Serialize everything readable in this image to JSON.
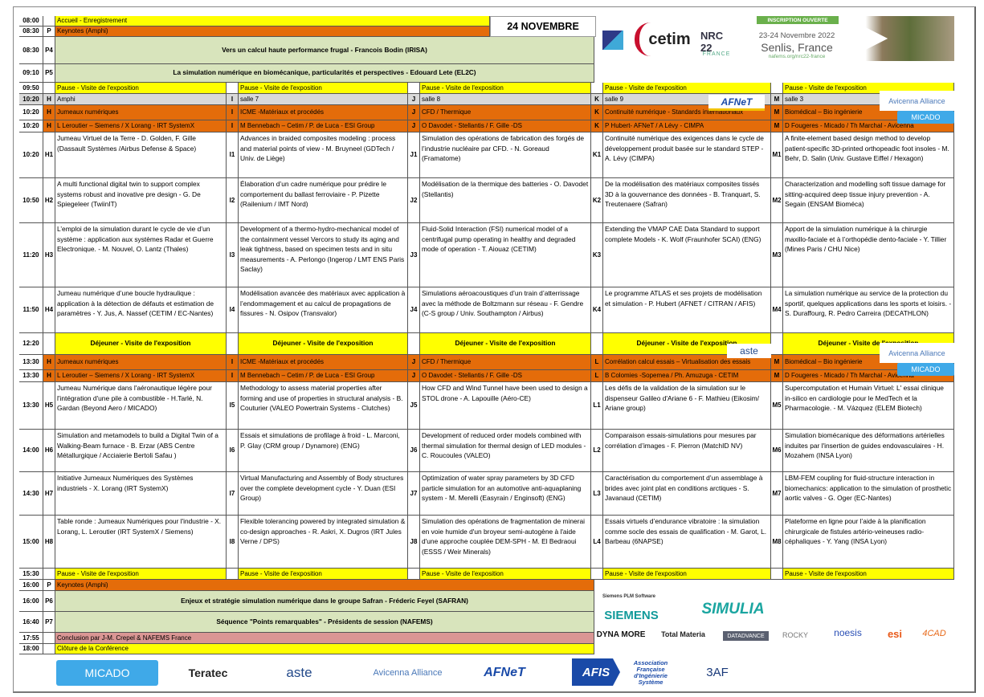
{
  "header": {
    "date": "24 NOVEMBRE",
    "event": {
      "badge": "INSCRIPTION OUVERTE",
      "dates": "23-24 Novembre 2022",
      "place": "Senlis, France",
      "url": "nafems.org/nrc22-france",
      "logo": "NRC 22",
      "logo_sub": "FRANCE"
    },
    "cetim": "cetim"
  },
  "colors": {
    "break": "#ffff00",
    "session": "#e46c0a",
    "keynote": "#d8e4bc",
    "room": "#d9d9d9",
    "conclusion": "#da9694"
  },
  "plenary_morning": [
    {
      "time": "08:00",
      "code": "",
      "text": "Accueil - Enregistrement",
      "kind": "y"
    },
    {
      "time": "08:30",
      "code": "P",
      "text": "Keynotes (Amphi)",
      "kind": "o"
    },
    {
      "time": "08:30",
      "code": "P4",
      "text": "Vers un calcul haute performance frugal - Francois Bodin (IRISA)",
      "kind": "g"
    },
    {
      "time": "09:10",
      "code": "P5",
      "text": "La simulation numérique en biomécanique, particularités et perspectives - Edouard Lete (EL2C)",
      "kind": "g"
    }
  ],
  "morning_break": {
    "time": "09:50",
    "text": "Pause - Visite de l'exposition"
  },
  "rooms": {
    "time": "10:20",
    "items": [
      {
        "code": "H",
        "name": "Amphi"
      },
      {
        "code": "I",
        "name": "salle 7"
      },
      {
        "code": "J",
        "name": "salle 8"
      },
      {
        "code": "K",
        "name": "salle 9"
      },
      {
        "code": "M",
        "name": "salle 3"
      }
    ]
  },
  "morning_sessions": {
    "time": "10:20",
    "tracks": [
      {
        "code": "H",
        "title": "Jumeaux numériques",
        "chairs": "L Leroutier – Siemens / X Lorang - IRT SystemX"
      },
      {
        "code": "I",
        "title": "ICME -Matériaux et procédés",
        "chairs": "M Bennebach – Cetim / P. de Luca - ESI Group"
      },
      {
        "code": "J",
        "title": "CFD / Thermique",
        "chairs": "O Davodet - Stellantis / F. Gille -DS"
      },
      {
        "code": "K",
        "title": "Continuité numérique - Standards internationaux",
        "chairs": "P Hubert- AFNeT / A Lévy - CIMPA"
      },
      {
        "code": "M",
        "title": "Biomédical – Bio ingénierie",
        "chairs": "D Fougeres - Micado / Th Marchal - Avicenna"
      }
    ]
  },
  "morning_talks": [
    {
      "time": "10:20",
      "cells": [
        {
          "code": "H1",
          "text": "Jumeau Virtuel de la Terre - D. Golden, F. Gille (Dassault Systèmes /Airbus Defense & Space)"
        },
        {
          "code": "I1",
          "text": "Advances in braided composites modeling : process and material points of view - M. Bruyneel (GDTech / Univ. de Liège)"
        },
        {
          "code": "J1",
          "text": "Simulation des opérations de fabrication des forgés de l’industrie nucléaire par CFD. - N. Goreaud (Framatome)"
        },
        {
          "code": "K1",
          "text": "Continuité numérique des exigences dans le cycle de développement produit basée sur le standard STEP - A. Lévy (CIMPA)"
        },
        {
          "code": "M1",
          "text": "A finite-element based design method to develop patient-specific 3D-printed orthopeadic foot insoles - M. Behr, D. Salin (Univ. Gustave Eiffel / Hexagon)"
        }
      ]
    },
    {
      "time": "10:50",
      "cells": [
        {
          "code": "H2",
          "text": "A multi functional digital twin to support complex systems robust and inovative pre design - G. De Spiegeleer (TwiinIT)"
        },
        {
          "code": "I2",
          "text": "Élaboration d’un cadre numérique pour prédire le comportement du ballast ferroviaire - P. Pizette (Railenium / IMT Nord)"
        },
        {
          "code": "J2",
          "text": "Modélisation de la thermique des batteries - O. Davodet (Stellantis)"
        },
        {
          "code": "K2",
          "text": " De la modélisation des matériaux composites tissés 3D à la gouvernance des données  - B. Tranquart, S. Treutenaere  (Safran)"
        },
        {
          "code": "M2",
          "text": "Characterization and modelling soft tissue damage for sitting-acquired deep tissue injury prevention - A. Segain (ENSAM Bioméca)"
        }
      ]
    },
    {
      "time": "11:20",
      "cells": [
        {
          "code": "H3",
          "text": "L’emploi de la simulation durant le cycle de vie d’un système : application aux systèmes Radar et Guerre Electronique. - M. Nouvel, O. Lantz (Thales)"
        },
        {
          "code": "I3",
          "text": "Development of a thermo-hydro-mechanical model of the containment vessel Vercors to study its aging and leak tightness, based on specimen tests and in situ measurements  - A. Perlongo (Ingerop / LMT ENS Paris Saclay)"
        },
        {
          "code": "J3",
          "text": "Fluid-Solid Interaction (FSI) numerical model of a centrifugal pump operating in healthy and degraded mode of operation - T. Aiouaz (CETIM)"
        },
        {
          "code": "K3",
          "text": "Extending the VMAP CAE Data Standard to support complete Models - K. Wolf (Fraunhofer SCAI) (ENG)"
        },
        {
          "code": "M3",
          "text": "Apport de la simulation numérique à la chirurgie maxillo-faciale et à l’orthopédie dento-faciale - Y. Tillier (Mines Paris / CHU Nice)"
        }
      ]
    },
    {
      "time": "11:50",
      "cells": [
        {
          "code": "H4",
          "text": "Jumeau numérique d’une boucle hydraulique : application à la détection de défauts et estimation de paramètres - Y. Jus, A. Nassef (CETIM / EC-Nantes)"
        },
        {
          "code": "I4",
          "text": "Modélisation avancée des matériaux avec application à l’endommagement et au calcul de propagations de fissures  - N. Osipov (Transvalor)"
        },
        {
          "code": "J4",
          "text": "Simulations aéroacoustiques d’un train d’atterrissage avec la méthode de Boltzmann sur réseau - F. Gendre (C-S group / Univ. Southampton / Airbus)"
        },
        {
          "code": "K4",
          "text": "Le programme ATLAS et ses projets de modélisation et simulation - P. Hubert (AFNET / CITRAN / AFIS)"
        },
        {
          "code": "M4",
          "text": "La simulation numérique au service de la protection du sportif, quelques applications dans les sports et loisirs. - S. Duraffourg, R. Pedro Carreira (DECATHLON)"
        }
      ]
    }
  ],
  "lunch": {
    "time": "12:20",
    "text": "Déjeuner - Visite de l'exposition"
  },
  "afternoon_sessions": {
    "time": "13:30",
    "tracks": [
      {
        "code": "H",
        "title": "Jumeaux numériques",
        "chairs": "L Leroutier – Siemens / X Lorang - IRT SystemX"
      },
      {
        "code": "I",
        "title": "ICME -Matériaux et procédés",
        "chairs": "M Bennebach – Cetim / P. de Luca - ESI Group"
      },
      {
        "code": "J",
        "title": "CFD / Thermique",
        "chairs": "O Davodet - Stellantis / F. Gille -DS"
      },
      {
        "code": "L",
        "title": "Corrélation calcul essais – Virtualisation des essais",
        "chairs": "B Colomies -Sopemea / Ph. Amuzuga - CETIM"
      },
      {
        "code": "M",
        "title": "Biomédical – Bio ingénierie",
        "chairs": "D Fougeres - Micado / Th Marchal - Avicenna"
      }
    ]
  },
  "afternoon_talks": [
    {
      "time": "13:30",
      "cells": [
        {
          "code": "H5",
          "text": "Jumeau Numérique dans l'aéronautique légère pour l'intégration d'une pile à combustible - H.Tarlé, N. Gardan  (Beyond Aero / MICADO)"
        },
        {
          "code": "I5",
          "text": "Methodology to assess material properties after forming and use of properties in structural analysis - B. Couturier (VALEO Powertrain Systems - Clutches)"
        },
        {
          "code": "J5",
          "text": "How CFD and Wind Tunnel have been used to design a STOL drone - A. Lapouille (Aéro-CE)"
        },
        {
          "code": "L1",
          "text": "Les défis de la validation de la simulation sur le dispenseur Galileo d'Ariane 6 - F. Mathieu (Eikosim/ Ariane group)"
        },
        {
          "code": "M5",
          "text": "Supercomputation et Humain Virtuel: L' essai clinique in-silico en cardiologie pour le MedTech et la Pharmacologie.  - M. Vázquez  (ELEM Biotech)"
        }
      ]
    },
    {
      "time": "14:00",
      "cells": [
        {
          "code": "H6",
          "text": "Simulation and metamodels to build a Digital Twin of a Walking-Beam furnace  - B. Erzar (ABS Centre Métallurgique / Acciaierie Bertoli Safau )"
        },
        {
          "code": "I6",
          "text": "Essais et simulations de profilage à froid - L. Marconi, P. Glay (CRM group / Dynamore) (ENG)"
        },
        {
          "code": "J6",
          "text": "Development of reduced order models combined with thermal simulation for thermal design of LED modules - C. Roucoules (VALEO)"
        },
        {
          "code": "L2",
          "text": "Comparaison essais-simulations pour mesures par corrélation d’images - F. Pierron  (MatchID NV)"
        },
        {
          "code": "M6",
          "text": "Simulation biomécanique des déformations artérielles induites par l'insertion de guides endovasculaires - H. Mozahem (INSA Lyon)"
        }
      ]
    },
    {
      "time": "14:30",
      "cells": [
        {
          "code": "H7",
          "text": "Initiative Jumeaux Numériques des Systèmes industriels - X. Lorang (IRT SystemX)"
        },
        {
          "code": "I7",
          "text": "Virtual Manufacturing and Assembly of Body structures over the complete development cycle - Y. Duan (ESI Group)"
        },
        {
          "code": "J7",
          "text": "Optimization of water spray parameters by 3D CFD particle simulation for an automotive anti-aquaplaning system  - M. Merelli (Easyrain / Enginsoft) (ENG)"
        },
        {
          "code": "L3",
          "text": "Caractérisation du comportement d’un assemblage à brides avec joint plat en conditions arctiques - S. Javanaud (CETIM)"
        },
        {
          "code": "M7",
          "text": "LBM-FEM coupling for fluid-structure interaction in biomechanics: application to the simulation of prosthetic aortic valves - G. Oger (EC-Nantes)"
        }
      ]
    },
    {
      "time": "15:00",
      "cells": [
        {
          "code": "H8",
          "text": "Table ronde : Jumeaux Numériques pour l'industrie - X. Lorang, L. Leroutier (IRT SystemX / Siemens)"
        },
        {
          "code": "I8",
          "text": "Flexible tolerancing powered by integrated simulation & co-design approaches - R. Askri, X. Dugros (IRT Jules Verne / DPS)"
        },
        {
          "code": "J8",
          "text": "Simulation des opérations de fragmentation de minerai en voie humide  d'un broyeur semi-autogène à l'aide d'une approche couplée DEM-SPH - M. El Bedraoui (ESSS / Weir Minerals)"
        },
        {
          "code": "L4",
          "text": "Essais virtuels d’endurance vibratoire : la simulation comme socle des essais de qualification - M. Garot, L. Barbeau (6NAPSE)"
        },
        {
          "code": "M8",
          "text": "Plateforme en ligne pour l’aide à la planification chirurgicale de fistules artério-veineuses radio-céphaliques - Y. Yang (INSA Lyon)"
        }
      ]
    }
  ],
  "afternoon_break": {
    "time": "15:30",
    "text": "Pause - Visite de l'exposition"
  },
  "plenary_afternoon": [
    {
      "time": "16:00",
      "code": "P",
      "text": "Keynotes (Amphi)",
      "kind": "o"
    },
    {
      "time": "16:00",
      "code": "P6",
      "text": "Enjeux et stratégie simulation numérique dans le groupe Safran - Fréderic Feyel (SAFRAN)",
      "kind": "g"
    },
    {
      "time": "16:40",
      "code": "P7",
      "text": "Séquence \"Points remarquables\" - Présidents de session (NAFEMS)",
      "kind": "g"
    },
    {
      "time": "17:55",
      "code": "",
      "text": "Conclusion par J-M. Crepel & NAFEMS France",
      "kind": "pk"
    },
    {
      "time": "18:00",
      "code": "",
      "text": "Clôture de la Conférence",
      "kind": "y"
    }
  ],
  "sponsors": {
    "caption": "Siemens PLM Software",
    "items": [
      "SIEMENS",
      "SIMULIA",
      "DYNA MORE",
      "Total Materia",
      "DATADVANCE",
      "ROCKY",
      "noesis",
      "esi",
      "4CAD"
    ]
  },
  "partners": [
    "MICADO",
    "Teratec",
    "aste",
    "Avicenna Alliance",
    "AFNeT",
    "AFIS",
    "Association Française d'Ingénierie Système",
    "3AF"
  ],
  "overlay_logos": {
    "afnet": "AFNeT",
    "avicenna": "Avicenna Alliance",
    "micado": "MICADO",
    "aste": "aste"
  }
}
